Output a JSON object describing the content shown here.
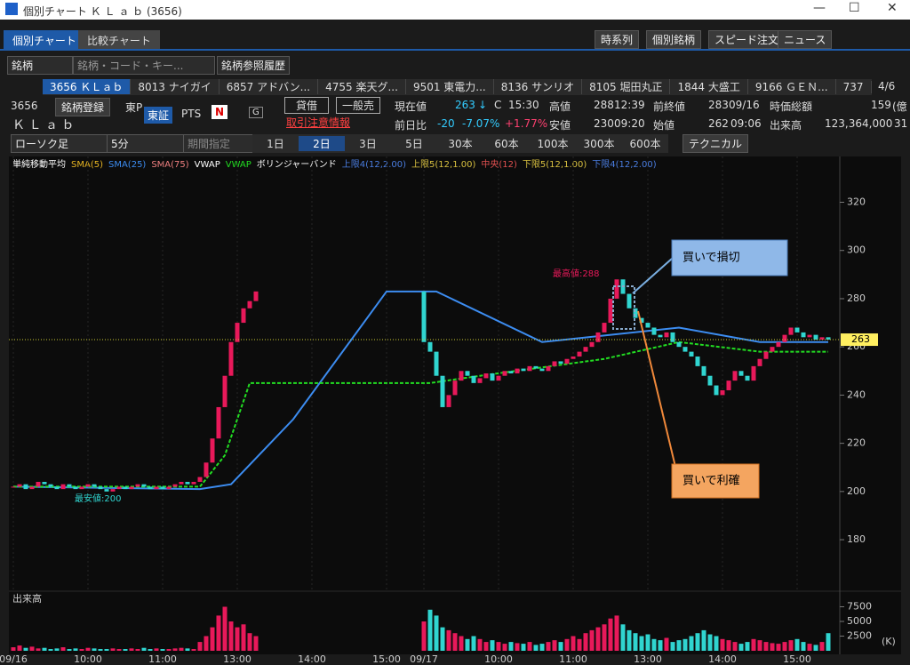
{
  "window": {
    "title": "個別チャート Ｋ Ｌ ａ ｂ (3656)"
  },
  "tabs": [
    "個別チャート",
    "比較チャート"
  ],
  "toolbar": [
    "時系列",
    "個別銘柄",
    "スピード注文",
    "ニュース"
  ],
  "search": {
    "type": "銘柄",
    "placeholder": "銘柄・コード・キー...",
    "history": "銘柄参照履歴"
  },
  "stock_tabs": [
    "3656 ＫＬａｂ",
    "8013 ナイガイ",
    "6857 アドバン...",
    "4755 楽天グ...",
    "9501 東電力...",
    "8136 サンリオ",
    "8105 堀田丸正",
    "1844 大盛工",
    "9166 ＧＥＮ...",
    "737"
  ],
  "page_indicator": "4/6",
  "quote": {
    "code": "3656",
    "register": "銘柄登録",
    "market": "東P",
    "name": "Ｋ Ｌ ａ ｂ",
    "exchange": "東証",
    "pts": "PTS",
    "n": "N",
    "g": "G",
    "margin": "貸借",
    "short": "一般売",
    "caution": "取引注意情報",
    "current_label": "現在値",
    "current": 263,
    "arrow": "↓",
    "c": "C",
    "current_time": "15:30",
    "high_label": "高値",
    "high": 288,
    "high_time": "12:39",
    "prev_label": "前終値",
    "prev": 283,
    "prev_date": "09/16",
    "cap_label": "時価総額",
    "cap": 159,
    "cap_unit": "(億",
    "change_label": "前日比",
    "change": -20,
    "change_pct": "-7.07%",
    "pts_pct": "+1.77%",
    "low_label": "安値",
    "low": 230,
    "low_time": "09:20",
    "open_label": "始値",
    "open": 262,
    "open_time": "09:06",
    "volume_label": "出来高",
    "volume": "123,364,000",
    "extra": "31"
  },
  "controls": {
    "chart_type": "ローソク足",
    "interval": "5分",
    "period": "期間指定",
    "ranges": [
      "1日",
      "2日",
      "3日",
      "5日",
      "30本",
      "60本",
      "100本",
      "300本",
      "600本"
    ],
    "technical": "テクニカル"
  },
  "legend": [
    {
      "text": "単純移動平均",
      "color": "#ffffff"
    },
    {
      "text": "SMA(5)",
      "color": "#e6b422"
    },
    {
      "text": "SMA(25)",
      "color": "#3c8cf0",
      "x": [
        0,
        30,
        35,
        45,
        60,
        68,
        85,
        107,
        120,
        131
      ],
      "values": [
        202,
        201,
        203,
        230,
        283,
        283,
        262,
        268,
        262,
        262
      ]
    },
    {
      "text": "SMA(75)",
      "color": "#f08080"
    },
    {
      "text": "VWAP",
      "color": "#ffffff"
    },
    {
      "text": "VWAP",
      "color": "#22dd22",
      "x": [
        0,
        30,
        34,
        38,
        66,
        67,
        75,
        95,
        107,
        120,
        131
      ],
      "values": [
        202,
        202,
        215,
        245,
        245,
        245,
        248,
        255,
        262,
        258,
        258
      ]
    },
    {
      "text": "ボリンジャーバンド",
      "color": "#ffffff"
    },
    {
      "text": "上限4(12,2.00)",
      "color": "#4a7de0"
    },
    {
      "text": "上限5(12,1.00)",
      "color": "#d8c040"
    },
    {
      "text": "中央(12)",
      "color": "#e05050"
    },
    {
      "text": "下限5(12,1.00)",
      "color": "#d8c040"
    },
    {
      "text": "下限4(12,2.00)",
      "color": "#4a7de0"
    }
  ],
  "chart_data": {
    "type": "candlestick",
    "up_color": "#e8195a",
    "down_color": "#30d5d0",
    "values": [
      202,
      203,
      201,
      202,
      204,
      203,
      202,
      201,
      203,
      202,
      201,
      202,
      203,
      202,
      201,
      200,
      201,
      202,
      201,
      202,
      203,
      202,
      201,
      202,
      201,
      202,
      203,
      204,
      203,
      204,
      206,
      212,
      222,
      235,
      248,
      262,
      270,
      276,
      279,
      283,
      null,
      null,
      null,
      null,
      null,
      null,
      null,
      null,
      null,
      null,
      null,
      null,
      null,
      null,
      null,
      null,
      null,
      null,
      null,
      null,
      null,
      null,
      null,
      null,
      null,
      null,
      262,
      258,
      248,
      235,
      240,
      246,
      250,
      248,
      245,
      247,
      249,
      246,
      248,
      250,
      249,
      251,
      250,
      252,
      251,
      250,
      252,
      254,
      253,
      255,
      256,
      258,
      260,
      262,
      266,
      270,
      280,
      288,
      282,
      276,
      272,
      270,
      268,
      265,
      264,
      266,
      262,
      260,
      258,
      256,
      252,
      248,
      244,
      240,
      242,
      246,
      250,
      248,
      246,
      252,
      255,
      258,
      260,
      262,
      265,
      268,
      266,
      264,
      265,
      263,
      264,
      263
    ],
    "ylim": [
      159,
      339
    ],
    "yticks": [
      180,
      200,
      220,
      240,
      260,
      280,
      300,
      320
    ],
    "xticks": [
      {
        "value": 0,
        "label": "09/16"
      },
      {
        "value": 12,
        "label": "10:00"
      },
      {
        "value": 24,
        "label": "11:00"
      },
      {
        "value": 36,
        "label": "13:00"
      },
      {
        "value": 48,
        "label": "14:00"
      },
      {
        "value": 60,
        "label": "15:00"
      },
      {
        "value": 66,
        "label": "09/17"
      },
      {
        "value": 78,
        "label": "10:00"
      },
      {
        "value": 90,
        "label": "11:00"
      },
      {
        "value": 102,
        "label": "13:00"
      },
      {
        "value": 114,
        "label": "14:00"
      },
      {
        "value": 126,
        "label": "15:00"
      }
    ],
    "high_note": "最高値:288",
    "low_note": "最安値:200",
    "callout_loss": "買いで損切",
    "callout_profit": "買いで利確",
    "price_label": 263,
    "volume": {
      "label": "出来高",
      "unit": "(K)",
      "ylim": [
        0,
        10000
      ],
      "yticks": [
        2500,
        5000,
        7500
      ],
      "values": [
        600,
        900,
        500,
        700,
        400,
        500,
        300,
        400,
        600,
        300,
        400,
        300,
        500,
        400,
        300,
        300,
        400,
        300,
        300,
        400,
        300,
        500,
        300,
        400,
        300,
        300,
        400,
        500,
        400,
        300,
        1500,
        2500,
        4000,
        6000,
        7500,
        5000,
        4000,
        4500,
        3000,
        2500,
        null,
        null,
        null,
        null,
        null,
        null,
        null,
        null,
        null,
        null,
        null,
        null,
        null,
        null,
        null,
        null,
        null,
        null,
        null,
        null,
        null,
        null,
        null,
        null,
        null,
        null,
        5000,
        7000,
        6000,
        4000,
        3500,
        3000,
        2500,
        2000,
        2500,
        2000,
        1500,
        1800,
        1500,
        1200,
        1500,
        1300,
        1200,
        1500,
        1000,
        1200,
        1500,
        1800,
        1500,
        2000,
        2500,
        2000,
        3000,
        3500,
        4000,
        4500,
        5500,
        6000,
        4500,
        3500,
        3000,
        2500,
        2800,
        2000,
        1800,
        2200,
        1500,
        1800,
        2000,
        2500,
        3000,
        3500,
        2800,
        2500,
        2000,
        1800,
        1500,
        1200,
        1500,
        2000,
        1800,
        1500,
        1300,
        1200,
        1500,
        1800,
        2000,
        1500,
        1200,
        1000,
        1500,
        3000
      ]
    }
  }
}
